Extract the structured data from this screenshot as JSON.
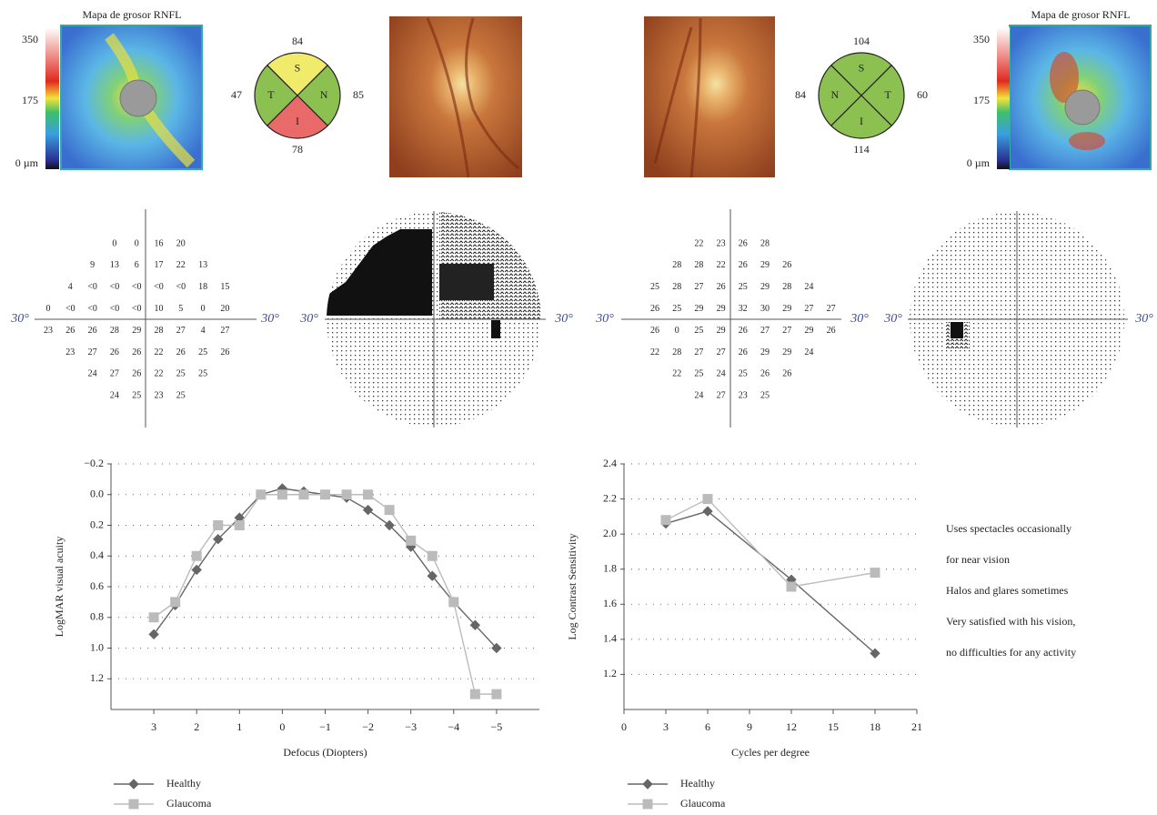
{
  "rnfl": [
    {
      "title": "Mapa de grosor RNFL",
      "scale_lim": [
        0,
        350
      ],
      "scale_ticks": [
        350,
        175,
        {
          "value": 0,
          "label": "0 µm"
        }
      ],
      "quadrants": [
        {
          "label": "S",
          "value": 84,
          "color": "#f1eb6b"
        },
        {
          "label": "T",
          "value": 47,
          "color": "#8cc152"
        },
        {
          "label": "N",
          "value": 85,
          "color": "#8cc152"
        },
        {
          "label": "I",
          "value": 78,
          "color": "#ea6a6a"
        }
      ]
    },
    {
      "title": "Mapa de grosor RNFL",
      "scale_lim": [
        0,
        350
      ],
      "scale_ticks": [
        350,
        175,
        {
          "value": 0,
          "label": "0 µm"
        }
      ],
      "quadrants": [
        {
          "label": "S",
          "value": 104,
          "color": "#8cc152"
        },
        {
          "label": "N",
          "value": 84,
          "color": "#8cc152"
        },
        {
          "label": "T",
          "value": 60,
          "color": "#8cc152"
        },
        {
          "label": "I",
          "value": 114,
          "color": "#8cc152"
        }
      ]
    }
  ],
  "fields": [
    {
      "axis_label": "30°",
      "rows": [
        [
          null,
          null,
          null,
          0,
          0,
          16,
          20,
          null,
          null
        ],
        [
          null,
          null,
          9,
          13,
          6,
          17,
          22,
          13,
          null
        ],
        [
          null,
          4,
          "<0",
          "<0",
          "<0",
          "<0",
          "<0",
          18,
          15
        ],
        [
          0,
          "<0",
          "<0",
          "<0",
          "<0",
          10,
          5,
          0,
          20
        ],
        [
          23,
          26,
          26,
          28,
          29,
          28,
          27,
          4,
          27
        ],
        [
          null,
          23,
          27,
          26,
          26,
          22,
          26,
          25,
          26
        ],
        [
          null,
          null,
          24,
          27,
          26,
          22,
          25,
          25,
          null
        ],
        [
          null,
          null,
          null,
          24,
          25,
          23,
          25,
          null,
          null
        ]
      ]
    },
    {
      "axis_label": "30°",
      "rows": [
        [
          null,
          null,
          22,
          23,
          26,
          28,
          null,
          null,
          null
        ],
        [
          null,
          28,
          28,
          22,
          26,
          29,
          26,
          null,
          null
        ],
        [
          25,
          28,
          27,
          26,
          25,
          29,
          28,
          24,
          null
        ],
        [
          26,
          25,
          29,
          29,
          32,
          30,
          29,
          27,
          27
        ],
        [
          26,
          0,
          25,
          29,
          26,
          27,
          27,
          29,
          26
        ],
        [
          22,
          28,
          27,
          27,
          26,
          29,
          29,
          24,
          null
        ],
        [
          null,
          22,
          25,
          24,
          25,
          26,
          26,
          null,
          null
        ],
        [
          null,
          null,
          24,
          27,
          23,
          25,
          null,
          null,
          null
        ]
      ]
    }
  ],
  "chart_data": [
    {
      "type": "line",
      "x_label": "Defocus (Diopters)",
      "y_label": "LogMAR visual acuity",
      "x": [
        3,
        2.5,
        2,
        1.5,
        1,
        0.5,
        0,
        -0.5,
        -1,
        -1.5,
        -2,
        -2.5,
        -3,
        -3.5,
        -4,
        -4.5,
        -5
      ],
      "xlim": [
        4,
        -6
      ],
      "xticks": [
        3,
        2,
        1,
        0,
        {
          "value": -1,
          "label": "−1"
        },
        {
          "value": -2,
          "label": "−2"
        },
        {
          "value": -3,
          "label": "−3"
        },
        {
          "value": -4,
          "label": "−4"
        },
        {
          "value": -5,
          "label": "−5"
        }
      ],
      "ylim": [
        1.4,
        -0.2
      ],
      "yticks": [
        {
          "value": -0.2,
          "label": "−0.2"
        },
        {
          "value": 0,
          "label": "0.0"
        },
        0.2,
        0.4,
        0.6,
        0.8,
        {
          "value": 1,
          "label": "1.0"
        },
        1.2
      ],
      "grid": true,
      "series": [
        {
          "name": "Healthy",
          "color": "#666666",
          "marker": "diamond",
          "values": [
            0.91,
            0.72,
            0.49,
            0.29,
            0.15,
            0.0,
            -0.04,
            -0.02,
            0.0,
            0.02,
            0.1,
            0.2,
            0.34,
            0.53,
            0.7,
            0.85,
            1.0
          ]
        },
        {
          "name": "Glaucoma",
          "color": "#bbbbbb",
          "marker": "square",
          "values": [
            0.8,
            0.7,
            0.4,
            0.2,
            0.2,
            0.0,
            0.0,
            0.0,
            0.0,
            0.0,
            0.0,
            0.1,
            0.3,
            0.4,
            0.7,
            1.3,
            1.3
          ]
        }
      ]
    },
    {
      "type": "line",
      "x_label": "Cycles per degree",
      "y_label": "Log Contrast Sensitivity",
      "x": [
        3,
        6,
        12,
        18
      ],
      "xlim": [
        0,
        21
      ],
      "xticks": [
        0,
        3,
        6,
        9,
        12,
        15,
        18,
        21
      ],
      "ylim": [
        1.0,
        2.4
      ],
      "yticks": [
        1.2,
        1.4,
        1.6,
        1.8,
        {
          "value": 2,
          "label": "2.0"
        },
        2.2,
        2.4
      ],
      "grid": true,
      "series": [
        {
          "name": "Healthy",
          "color": "#666666",
          "marker": "diamond",
          "values": [
            2.06,
            2.13,
            1.74,
            1.32
          ]
        },
        {
          "name": "Glaucoma",
          "color": "#bbbbbb",
          "marker": "square",
          "values": [
            2.08,
            2.2,
            1.7,
            1.78
          ]
        }
      ]
    }
  ],
  "notes": [
    "Uses spectacles occasionally",
    "for near vision",
    "Halos and glares sometimes",
    "Very satisfied with his vision,",
    "no difficulties for any activity"
  ]
}
